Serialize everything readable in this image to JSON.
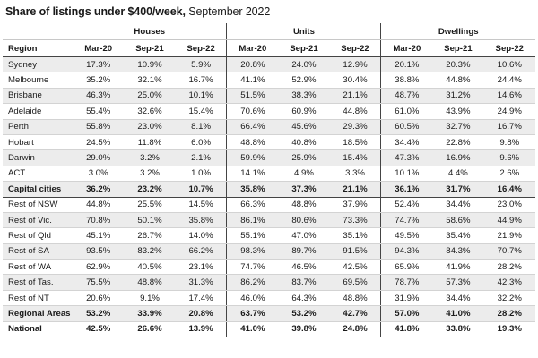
{
  "title": {
    "bold": "Share of listings under $400/week,",
    "rest": " September 2022"
  },
  "groups": [
    "Houses",
    "Units",
    "Dwellings"
  ],
  "header": {
    "region": "Region",
    "periods": [
      "Mar-20",
      "Sep-21",
      "Sep-22",
      "Mar-20",
      "Sep-21",
      "Sep-22",
      "Mar-20",
      "Sep-21",
      "Sep-22"
    ]
  },
  "rows": [
    {
      "region": "Sydney",
      "values": [
        "17.3%",
        "10.9%",
        "5.9%",
        "20.8%",
        "24.0%",
        "12.9%",
        "20.1%",
        "20.3%",
        "10.6%"
      ]
    },
    {
      "region": "Melbourne",
      "values": [
        "35.2%",
        "32.1%",
        "16.7%",
        "41.1%",
        "52.9%",
        "30.4%",
        "38.8%",
        "44.8%",
        "24.4%"
      ]
    },
    {
      "region": "Brisbane",
      "values": [
        "46.3%",
        "25.0%",
        "10.1%",
        "51.5%",
        "38.3%",
        "21.1%",
        "48.7%",
        "31.2%",
        "14.6%"
      ]
    },
    {
      "region": "Adelaide",
      "values": [
        "55.4%",
        "32.6%",
        "15.4%",
        "70.6%",
        "60.9%",
        "44.8%",
        "61.0%",
        "43.9%",
        "24.9%"
      ]
    },
    {
      "region": "Perth",
      "values": [
        "55.8%",
        "23.0%",
        "8.1%",
        "66.4%",
        "45.6%",
        "29.3%",
        "60.5%",
        "32.7%",
        "16.7%"
      ]
    },
    {
      "region": "Hobart",
      "values": [
        "24.5%",
        "11.8%",
        "6.0%",
        "48.8%",
        "40.8%",
        "18.5%",
        "34.4%",
        "22.8%",
        "9.8%"
      ]
    },
    {
      "region": "Darwin",
      "values": [
        "29.0%",
        "3.2%",
        "2.1%",
        "59.9%",
        "25.9%",
        "15.4%",
        "47.3%",
        "16.9%",
        "9.6%"
      ]
    },
    {
      "region": "ACT",
      "values": [
        "3.0%",
        "3.2%",
        "1.0%",
        "14.1%",
        "4.9%",
        "3.3%",
        "10.1%",
        "4.4%",
        "2.6%"
      ]
    },
    {
      "region": "Capital cities",
      "values": [
        "36.2%",
        "23.2%",
        "10.7%",
        "35.8%",
        "37.3%",
        "21.1%",
        "36.1%",
        "31.7%",
        "16.4%"
      ]
    },
    {
      "region": "Rest of NSW",
      "values": [
        "44.8%",
        "25.5%",
        "14.5%",
        "66.3%",
        "48.8%",
        "37.9%",
        "52.4%",
        "34.4%",
        "23.0%"
      ]
    },
    {
      "region": "Rest of Vic.",
      "values": [
        "70.8%",
        "50.1%",
        "35.8%",
        "86.1%",
        "80.6%",
        "73.3%",
        "74.7%",
        "58.6%",
        "44.9%"
      ]
    },
    {
      "region": "Rest of Qld",
      "values": [
        "45.1%",
        "26.7%",
        "14.0%",
        "55.1%",
        "47.0%",
        "35.1%",
        "49.5%",
        "35.4%",
        "21.9%"
      ]
    },
    {
      "region": "Rest of SA",
      "values": [
        "93.5%",
        "83.2%",
        "66.2%",
        "98.3%",
        "89.7%",
        "91.5%",
        "94.3%",
        "84.3%",
        "70.7%"
      ]
    },
    {
      "region": "Rest of WA",
      "values": [
        "62.9%",
        "40.5%",
        "23.1%",
        "74.7%",
        "46.5%",
        "42.5%",
        "65.9%",
        "41.9%",
        "28.2%"
      ]
    },
    {
      "region": "Rest of Tas.",
      "values": [
        "75.5%",
        "48.8%",
        "31.3%",
        "86.2%",
        "83.7%",
        "69.5%",
        "78.7%",
        "57.3%",
        "42.3%"
      ]
    },
    {
      "region": "Rest of NT",
      "values": [
        "20.6%",
        "9.1%",
        "17.4%",
        "46.0%",
        "64.3%",
        "48.8%",
        "31.9%",
        "34.4%",
        "32.2%"
      ]
    },
    {
      "region": "Regional Areas",
      "values": [
        "53.2%",
        "33.9%",
        "20.8%",
        "63.7%",
        "53.2%",
        "42.7%",
        "57.0%",
        "41.0%",
        "28.2%"
      ]
    },
    {
      "region": "National",
      "values": [
        "42.5%",
        "26.6%",
        "13.9%",
        "41.0%",
        "39.8%",
        "24.8%",
        "41.8%",
        "33.8%",
        "19.3%"
      ]
    }
  ]
}
